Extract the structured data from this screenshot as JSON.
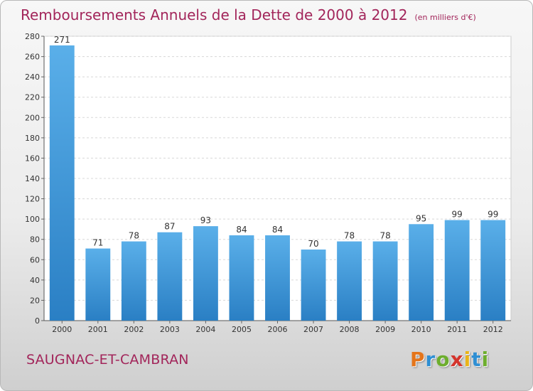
{
  "header": {
    "title": "Remboursements Annuels de la Dette de 2000 à 2012",
    "unit": "(en milliers d'€)"
  },
  "footer": {
    "commune": "SAUGNAC-ET-CAMBRAN",
    "logo_text": "Proxiti"
  },
  "colors": {
    "title": "#a2255a",
    "bar_light": "#5aafe9",
    "bar_dark": "#2a7fc4",
    "logo": [
      "#e4751b",
      "#2f8fd3",
      "#6dae2e",
      "#d4342c",
      "#e9b418",
      "#2f8fd3",
      "#6dae2e"
    ]
  },
  "chart_data": {
    "type": "bar",
    "categories": [
      "2000",
      "2001",
      "2002",
      "2003",
      "2004",
      "2005",
      "2006",
      "2007",
      "2008",
      "2009",
      "2010",
      "2011",
      "2012"
    ],
    "values": [
      271,
      71,
      78,
      87,
      93,
      84,
      84,
      70,
      78,
      78,
      95,
      99,
      99
    ],
    "ylim": [
      0,
      280
    ],
    "yticks": [
      0,
      20,
      40,
      60,
      80,
      100,
      120,
      140,
      160,
      180,
      200,
      220,
      240,
      260,
      280
    ],
    "grid": true
  }
}
